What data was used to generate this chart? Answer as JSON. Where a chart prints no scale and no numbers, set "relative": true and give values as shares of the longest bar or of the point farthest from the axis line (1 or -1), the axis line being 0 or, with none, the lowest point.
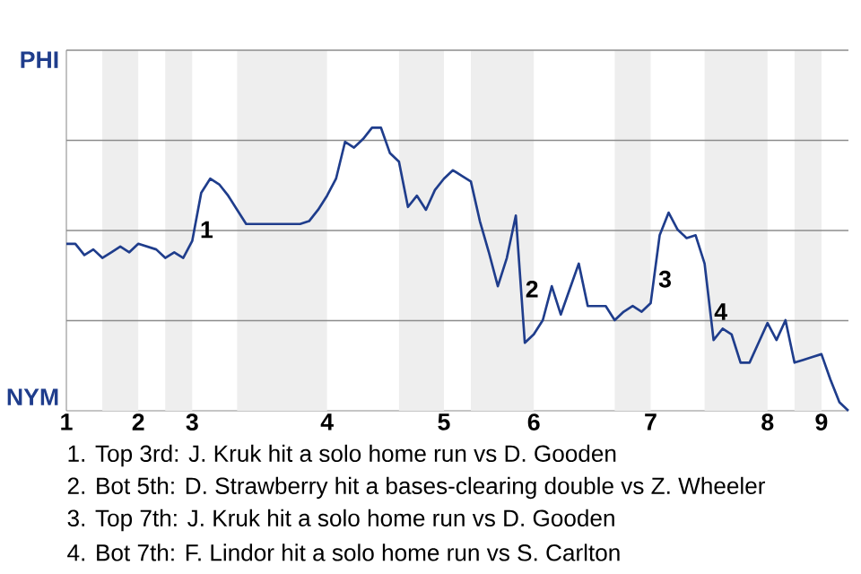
{
  "chart_data": {
    "type": "line",
    "color": "#1f3d8c",
    "grid": true,
    "relative": true,
    "categories": [
      "1",
      null,
      null,
      null,
      null,
      null,
      null,
      null,
      "2",
      null,
      null,
      null,
      null,
      null,
      "3",
      null,
      null,
      null,
      null,
      null,
      null,
      null,
      null,
      null,
      null,
      null,
      null,
      null,
      null,
      "4",
      null,
      null,
      null,
      null,
      null,
      null,
      null,
      null,
      null,
      null,
      null,
      null,
      "5",
      null,
      null,
      null,
      null,
      null,
      null,
      null,
      null,
      null,
      "6",
      null,
      null,
      null,
      null,
      null,
      null,
      null,
      null,
      null,
      null,
      null,
      null,
      "7",
      null,
      null,
      null,
      null,
      null,
      null,
      null,
      null,
      null,
      null,
      null,
      null,
      "8",
      null,
      null,
      null,
      null,
      null,
      "9",
      null,
      null,
      null
    ],
    "values": [
      0.59,
      0.59,
      0.55,
      0.57,
      0.54,
      0.56,
      0.58,
      0.56,
      0.59,
      0.58,
      0.57,
      0.54,
      0.56,
      0.54,
      0.6,
      0.77,
      0.82,
      0.8,
      0.76,
      0.71,
      0.66,
      0.66,
      0.66,
      0.66,
      0.66,
      0.66,
      0.66,
      0.67,
      0.71,
      0.76,
      0.82,
      0.95,
      0.93,
      0.96,
      1,
      1,
      0.91,
      0.88,
      0.72,
      0.76,
      0.71,
      0.78,
      0.82,
      0.85,
      0.83,
      0.81,
      0.67,
      0.56,
      0.44,
      0.54,
      0.69,
      0.24,
      0.27,
      0.32,
      0.44,
      0.34,
      0.43,
      0.52,
      0.37,
      0.37,
      0.37,
      0.32,
      0.35,
      0.37,
      0.35,
      0.38,
      0.62,
      0.7,
      0.64,
      0.61,
      0.62,
      0.52,
      0.25,
      0.29,
      0.27,
      0.17,
      0.17,
      0.24,
      0.31,
      0.25,
      0.32,
      0.17,
      0.18,
      0.19,
      0.2,
      0.11,
      0.03,
      0
    ],
    "annotations": [
      "PHI",
      "NYM",
      "1",
      "2",
      "3",
      "4",
      "1. Top 3rd: J. Kruk hit a solo home run vs D. Gooden",
      "2. Bot 5th: D. Strawberry hit a bases-clearing double vs Z. Wheeler",
      "3. Top 7th: J. Kruk hit a solo home run vs D. Gooden",
      "4. Bot 7th: F. Lindor hit a solo home run vs S. Carlton"
    ]
  }
}
